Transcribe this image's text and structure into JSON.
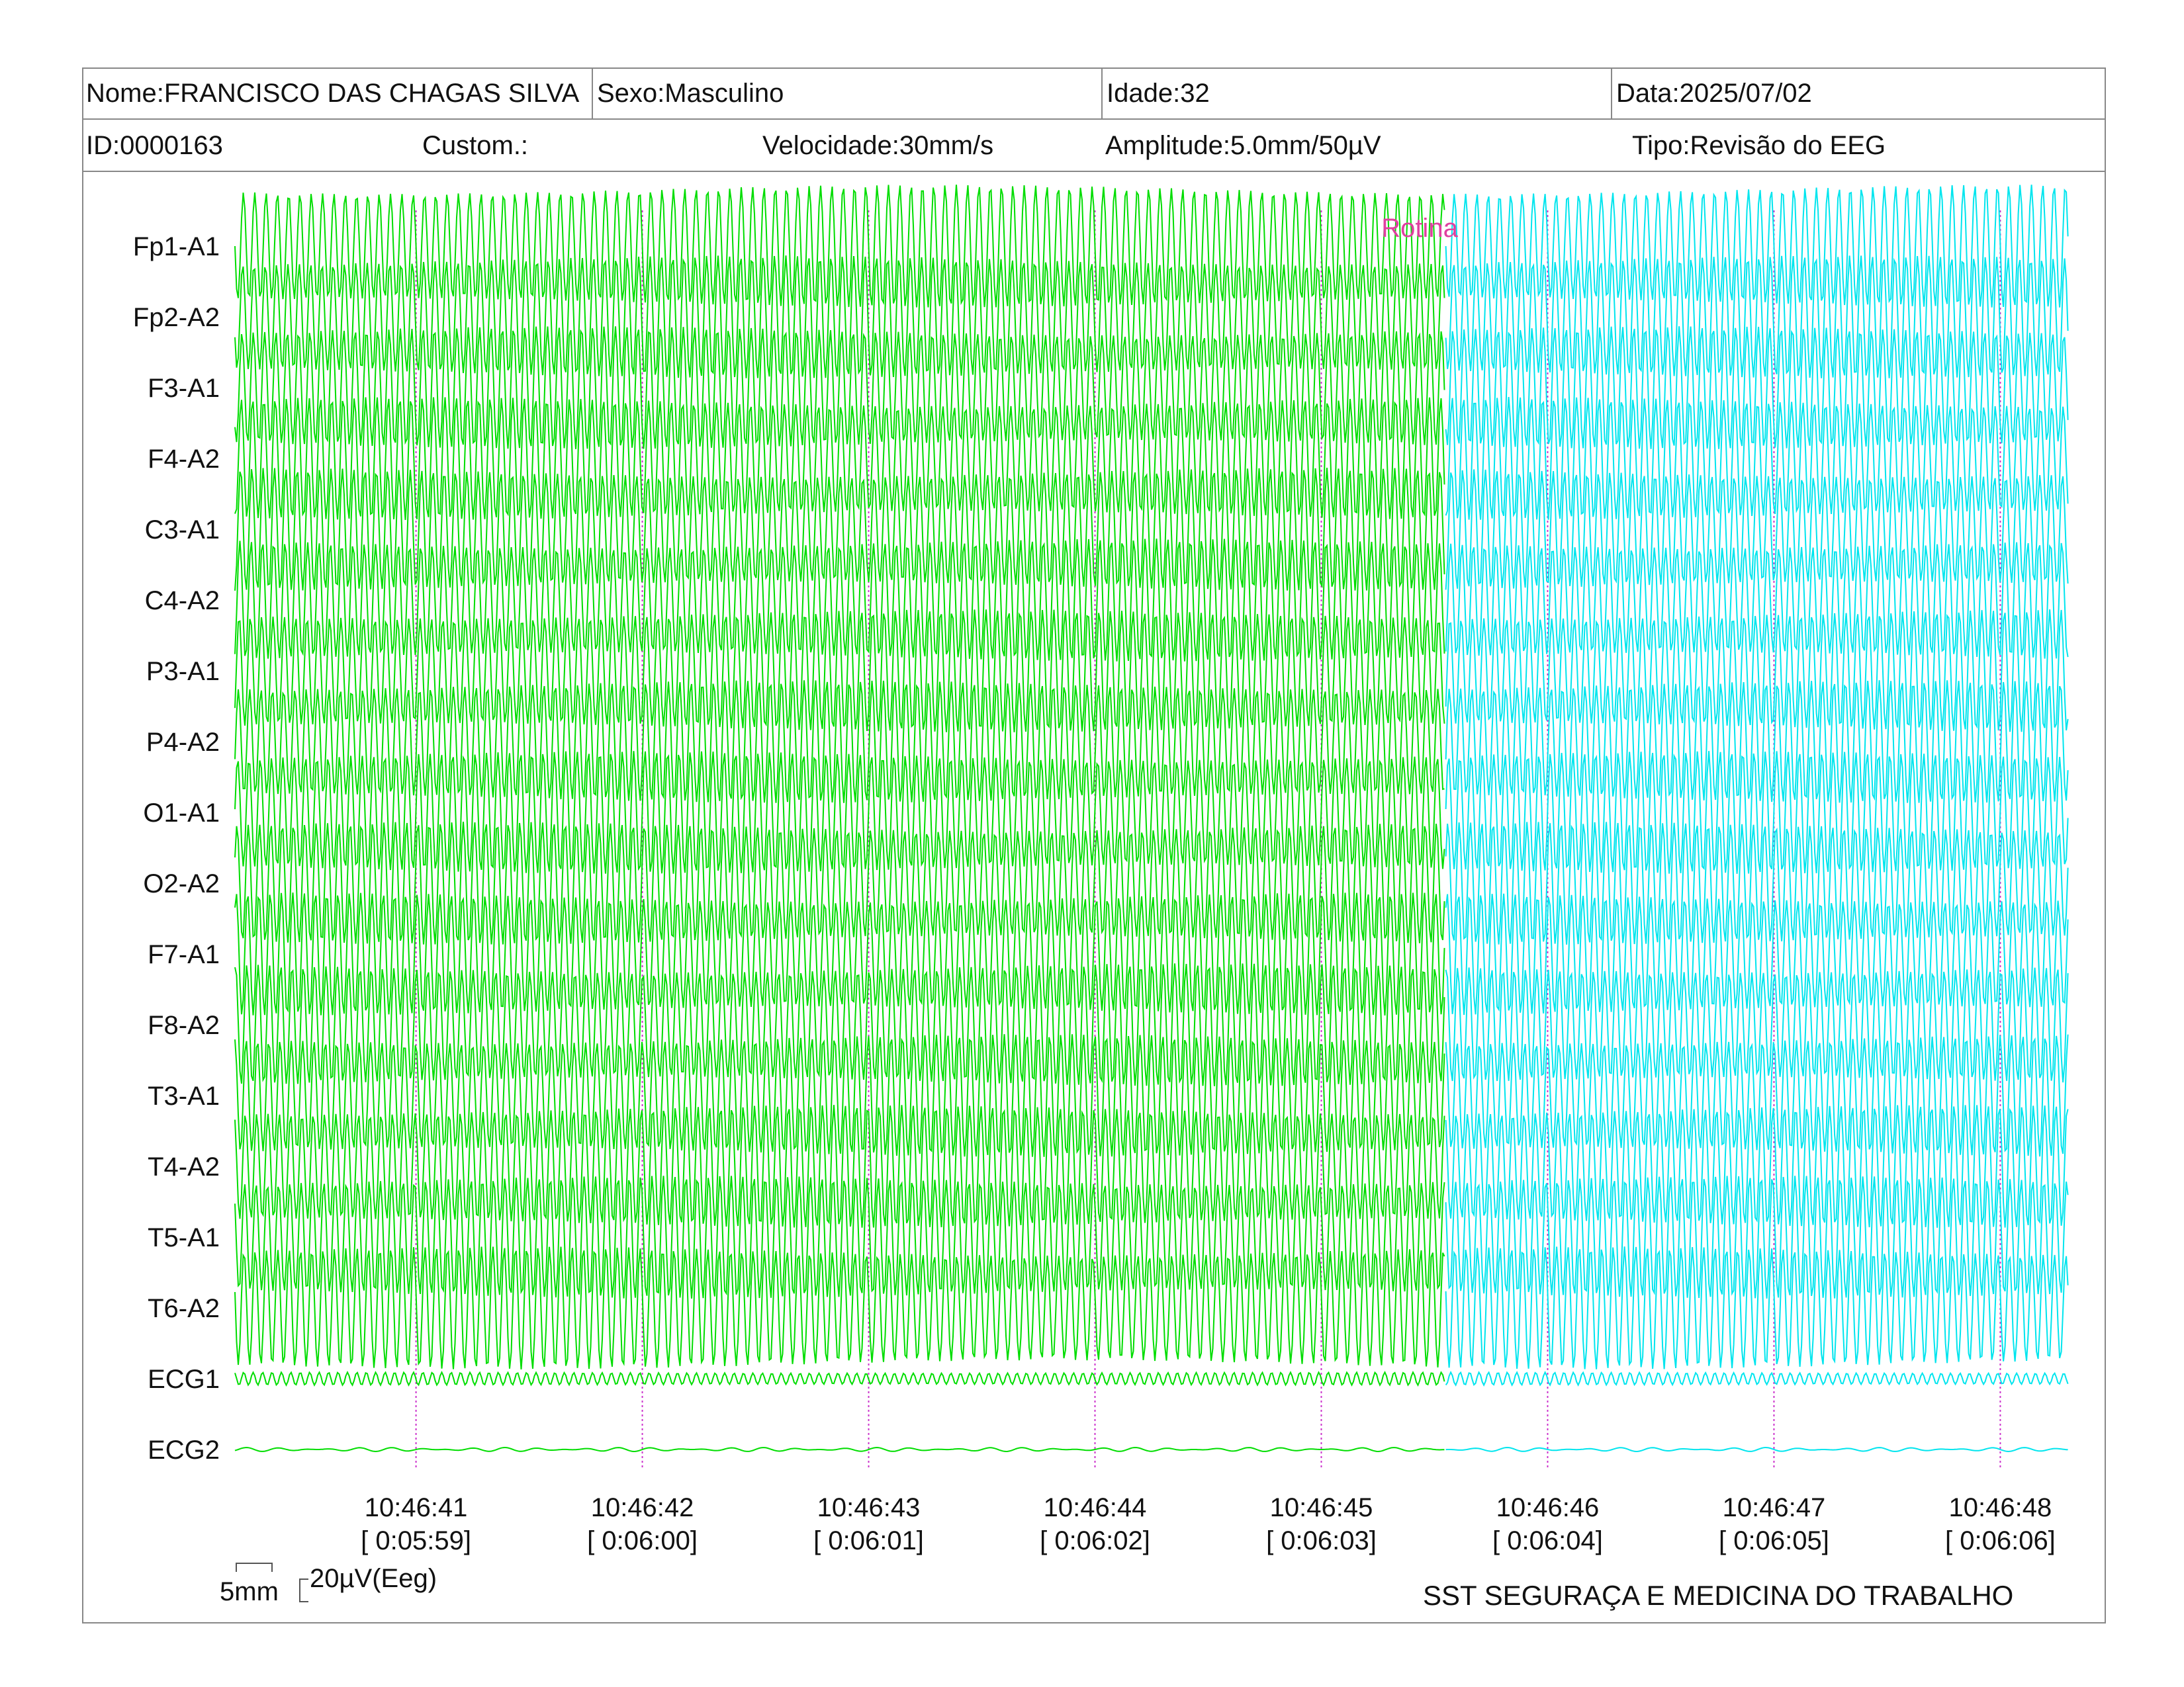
{
  "header": {
    "name": "Nome:FRANCISCO DAS CHAGAS SILVA",
    "sex": "Sexo:Masculino",
    "age": "Idade:32",
    "date": "Data:2025/07/02",
    "id": "ID:0000163",
    "custom": "Custom.:",
    "speed": "Velocidade:30mm/s",
    "amplitude": "Amplitude:5.0mm/50µV",
    "type": "Tipo:Revisão do EEG"
  },
  "annotation": "Rotina",
  "scale": {
    "time": "5mm",
    "amplitude": "20µV(Eeg)"
  },
  "footer": "SST SEGURAÇA E MEDICINA DO TRABALHO",
  "colors": {
    "trace_main": "#00dd00",
    "trace_alt": "#00e5ee",
    "annotation": "#e040a0",
    "gridline": "#cc33cc"
  },
  "chart_data": {
    "type": "line",
    "channels": [
      "Fp1-A1",
      "Fp2-A2",
      "F3-A1",
      "F4-A2",
      "C3-A1",
      "C4-A2",
      "P3-A1",
      "P4-A2",
      "O1-A1",
      "O2-A2",
      "F7-A1",
      "F8-A2",
      "T3-A1",
      "T4-A2",
      "T5-A1",
      "T6-A2",
      "ECG1",
      "ECG2"
    ],
    "time_ticks": [
      {
        "clock": "10:46:41",
        "elapsed": "[ 0:05:59]"
      },
      {
        "clock": "10:46:42",
        "elapsed": "[ 0:06:00]"
      },
      {
        "clock": "10:46:43",
        "elapsed": "[ 0:06:01]"
      },
      {
        "clock": "10:46:44",
        "elapsed": "[ 0:06:02]"
      },
      {
        "clock": "10:46:45",
        "elapsed": "[ 0:06:03]"
      },
      {
        "clock": "10:46:46",
        "elapsed": "[ 0:06:04]"
      },
      {
        "clock": "10:46:47",
        "elapsed": "[ 0:06:05]"
      },
      {
        "clock": "10:46:48",
        "elapsed": "[ 0:06:06]"
      }
    ],
    "x_start_seconds": 10.2,
    "x_end_seconds": 18.3,
    "color_change_at_seconds": 15.55,
    "eeg_frequency_hz": 20,
    "ecg1_frequency_hz": 24,
    "speed_mm_per_s": 30,
    "amplitude_mm_per_50uV": 5.0
  }
}
